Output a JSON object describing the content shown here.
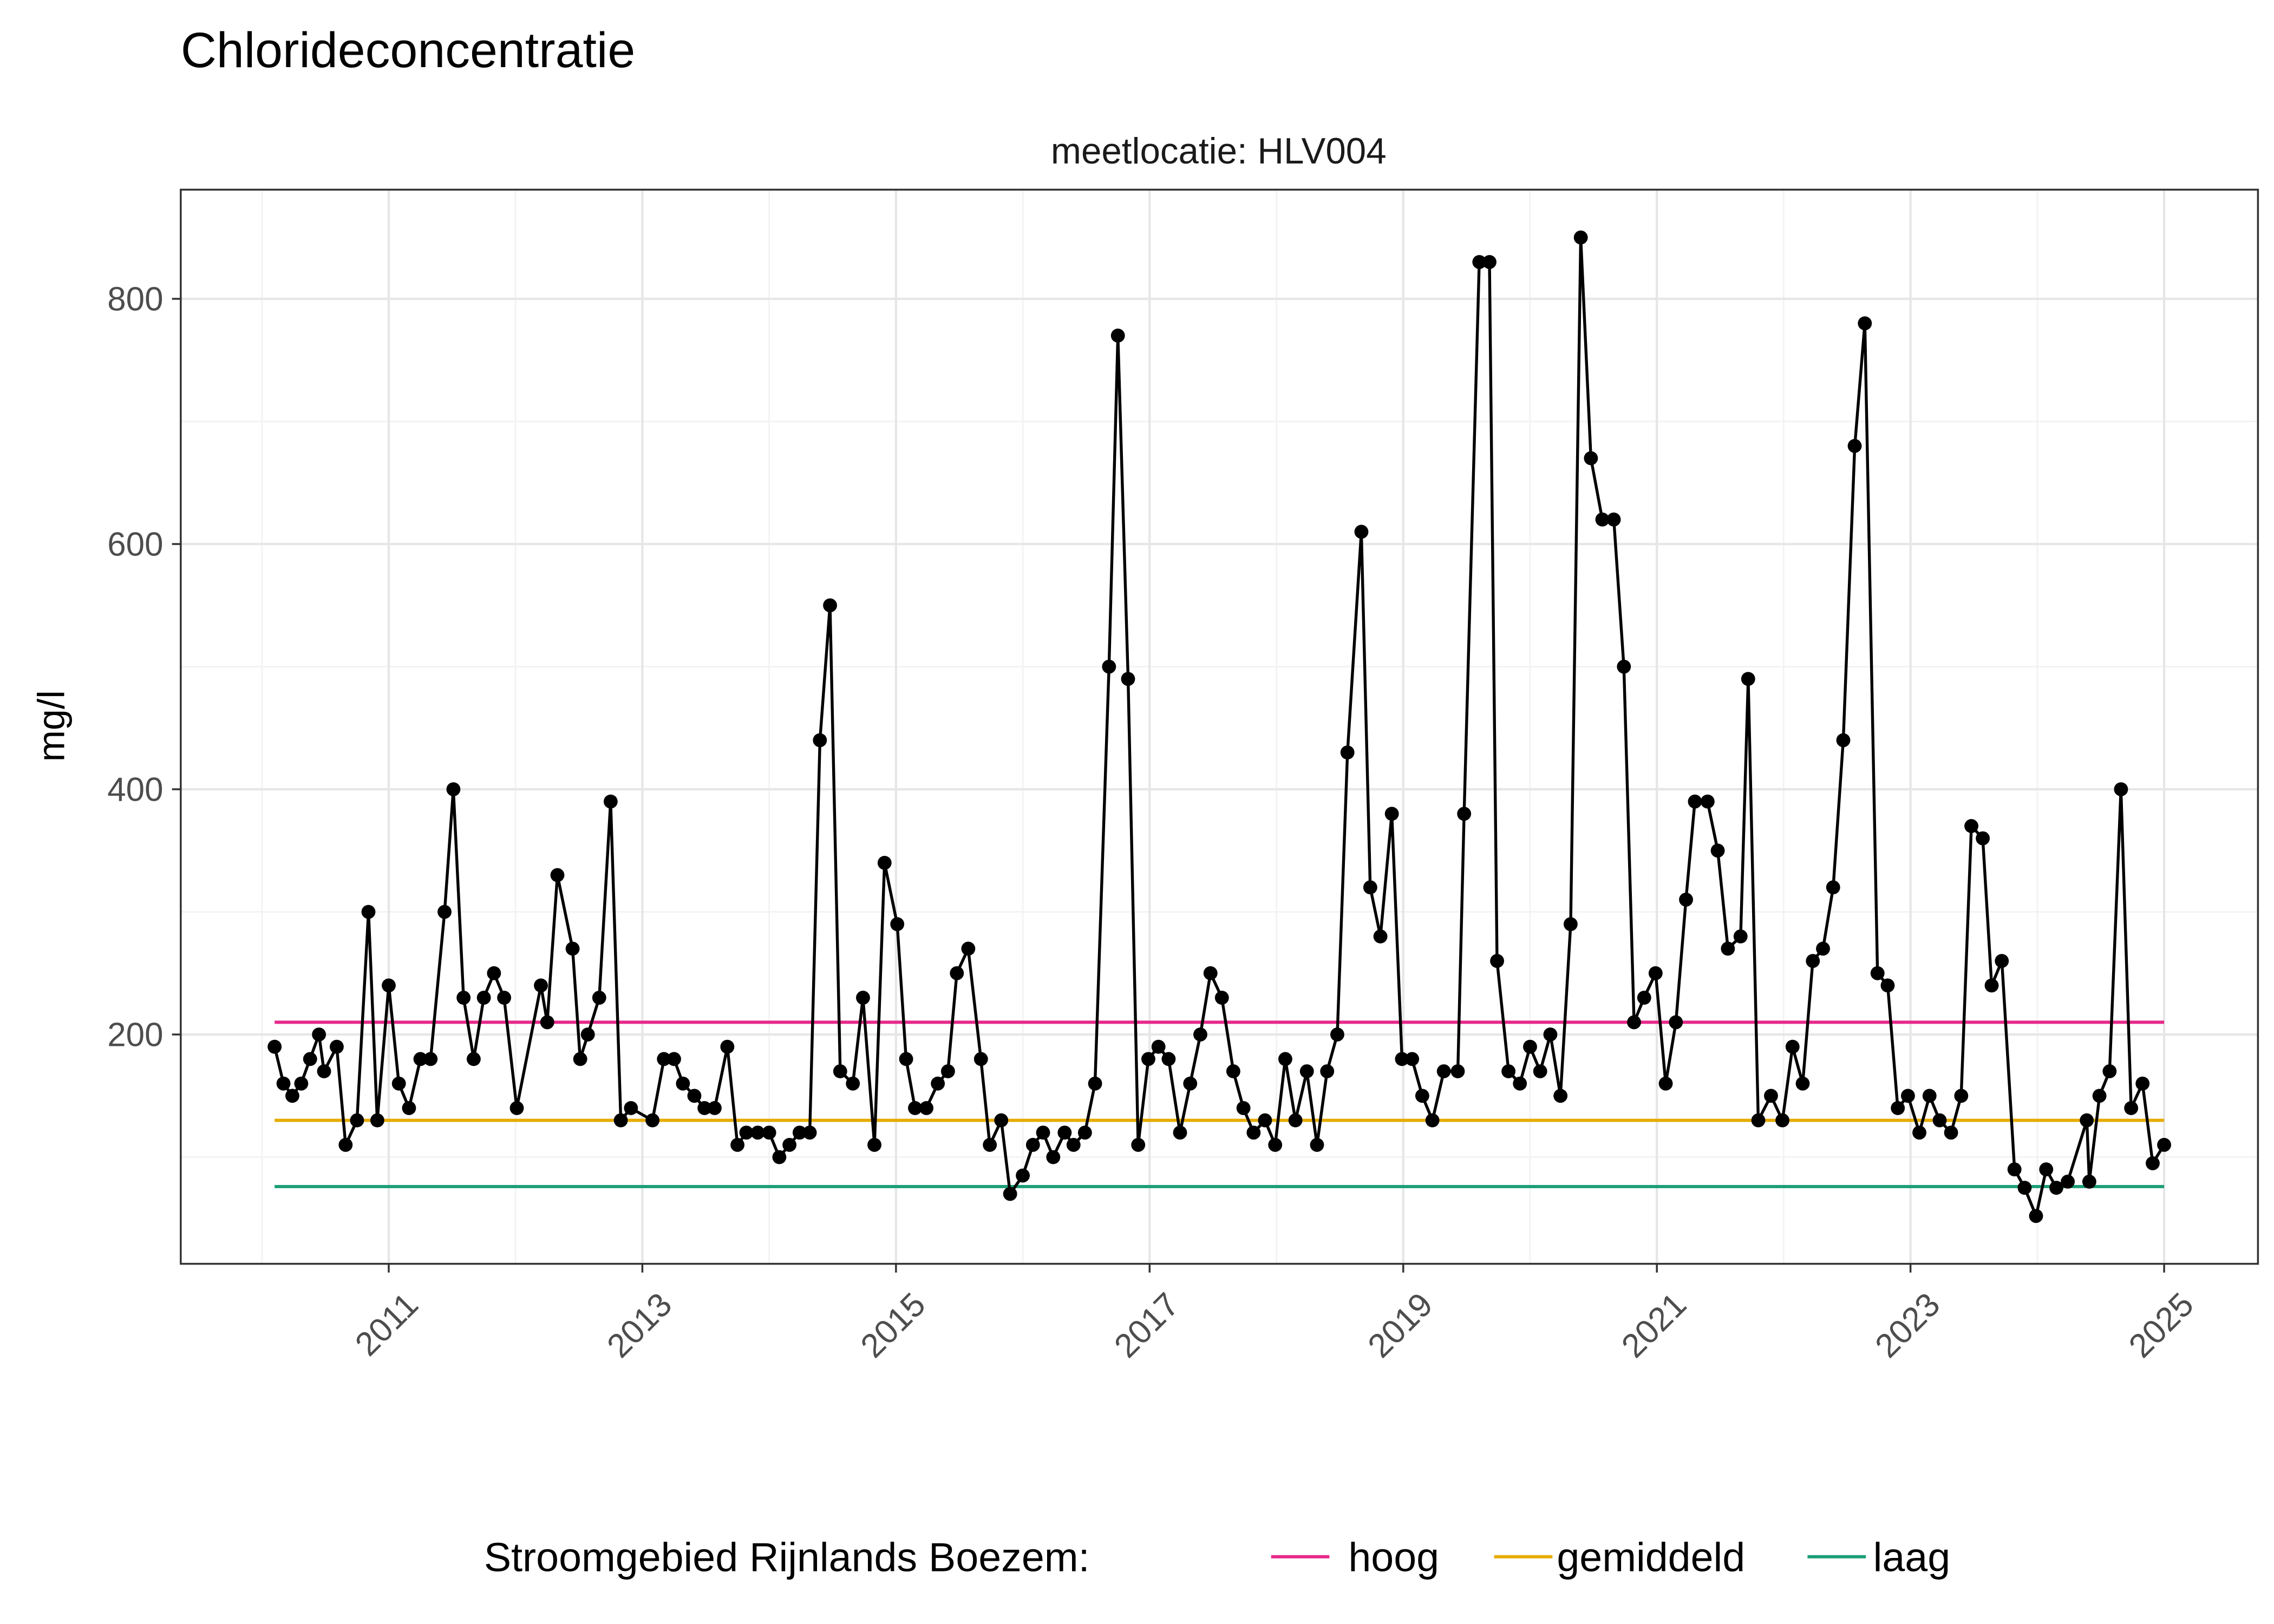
{
  "chart_data": {
    "type": "line",
    "title": "Chlorideconcentratie",
    "facet_label": "meetlocatie: HLV004",
    "xlabel": "",
    "ylabel": "mg/l",
    "xlim": [
      2009.36,
      2025.74
    ],
    "ylim": [
      13,
      889
    ],
    "x_ticks": [
      2011,
      2013,
      2015,
      2017,
      2019,
      2021,
      2023,
      2025
    ],
    "x_tick_labels": [
      "2011",
      "2013",
      "2015",
      "2017",
      "2019",
      "2021",
      "2023",
      "2025"
    ],
    "y_ticks": [
      200,
      400,
      600,
      800
    ],
    "y_tick_labels": [
      "200",
      "400",
      "600",
      "800"
    ],
    "grid": true,
    "legend_position": "bottom",
    "legend_title": "Stroomgebied Rijnlands Boezem:",
    "reference_lines": [
      {
        "name": "hoog",
        "value": 210,
        "color": "#E7298A"
      },
      {
        "name": "gemiddeld",
        "value": 130,
        "color": "#E6AB02"
      },
      {
        "name": "laag",
        "value": 76,
        "color": "#1B9E77"
      }
    ],
    "series": [
      {
        "color": "#000000",
        "x": [
          2010.1,
          2010.17,
          2010.24,
          2010.31,
          2010.38,
          2010.45,
          2010.49,
          2010.59,
          2010.66,
          2010.75,
          2010.84,
          2010.91,
          2011.0,
          2011.08,
          2011.16,
          2011.25,
          2011.33,
          2011.44,
          2011.51,
          2011.59,
          2011.67,
          2011.75,
          2011.83,
          2011.91,
          2012.01,
          2012.2,
          2012.25,
          2012.33,
          2012.45,
          2012.51,
          2012.57,
          2012.66,
          2012.75,
          2012.83,
          2012.91,
          2013.08,
          2013.17,
          2013.25,
          2013.32,
          2013.41,
          2013.49,
          2013.57,
          2013.67,
          2013.75,
          2013.82,
          2013.91,
          2014.0,
          2014.08,
          2014.16,
          2014.24,
          2014.32,
          2014.4,
          2014.48,
          2014.56,
          2014.66,
          2014.74,
          2014.83,
          2014.91,
          2015.01,
          2015.08,
          2015.15,
          2015.24,
          2015.33,
          2015.41,
          2015.48,
          2015.57,
          2015.67,
          2015.74,
          2015.83,
          2015.9,
          2016.0,
          2016.08,
          2016.16,
          2016.24,
          2016.33,
          2016.4,
          2016.49,
          2016.57,
          2016.68,
          2016.75,
          2016.83,
          2016.91,
          2016.99,
          2017.07,
          2017.15,
          2017.24,
          2017.32,
          2017.4,
          2017.48,
          2017.57,
          2017.66,
          2017.74,
          2017.82,
          2017.91,
          2017.99,
          2018.07,
          2018.15,
          2018.24,
          2018.32,
          2018.4,
          2018.48,
          2018.56,
          2018.67,
          2018.74,
          2018.82,
          2018.91,
          2018.99,
          2019.07,
          2019.15,
          2019.23,
          2019.32,
          2019.43,
          2019.48,
          2019.6,
          2019.68,
          2019.74,
          2019.83,
          2019.92,
          2020.0,
          2020.08,
          2020.16,
          2020.24,
          2020.32,
          2020.4,
          2020.48,
          2020.57,
          2020.66,
          2020.74,
          2020.82,
          2020.9,
          2020.99,
          2021.07,
          2021.15,
          2021.23,
          2021.3,
          2021.4,
          2021.48,
          2021.56,
          2021.66,
          2021.72,
          2021.8,
          2021.9,
          2021.99,
          2022.07,
          2022.15,
          2022.23,
          2022.31,
          2022.39,
          2022.47,
          2022.56,
          2022.64,
          2022.74,
          2022.82,
          2022.9,
          2022.98,
          2023.07,
          2023.15,
          2023.23,
          2023.32,
          2023.4,
          2023.48,
          2023.57,
          2023.64,
          2023.72,
          2023.82,
          2023.9,
          2023.99,
          2024.07,
          2024.15,
          2024.24,
          2024.39,
          2024.41,
          2024.49,
          2024.57,
          2024.66,
          2024.74,
          2024.83,
          2024.91,
          2025.0
        ],
        "y": [
          190,
          160,
          150,
          160,
          180,
          200,
          170,
          190,
          110,
          130,
          300,
          130,
          240,
          160,
          140,
          180,
          180,
          300,
          400,
          230,
          180,
          230,
          250,
          230,
          140,
          240,
          210,
          330,
          270,
          180,
          200,
          230,
          390,
          130,
          140,
          130,
          180,
          180,
          160,
          150,
          140,
          140,
          190,
          110,
          120,
          120,
          120,
          100,
          110,
          120,
          120,
          440,
          550,
          170,
          160,
          230,
          110,
          340,
          290,
          180,
          140,
          140,
          160,
          170,
          250,
          270,
          180,
          110,
          130,
          70,
          85,
          110,
          120,
          100,
          120,
          110,
          120,
          160,
          500,
          770,
          490,
          110,
          180,
          190,
          180,
          120,
          160,
          200,
          250,
          230,
          170,
          140,
          120,
          130,
          110,
          180,
          130,
          170,
          110,
          170,
          200,
          430,
          610,
          320,
          280,
          380,
          180,
          180,
          150,
          130,
          170,
          170,
          380,
          830,
          830,
          260,
          170,
          160,
          190,
          170,
          200,
          150,
          290,
          850,
          670,
          620,
          620,
          500,
          210,
          230,
          250,
          160,
          210,
          310,
          390,
          390,
          350,
          270,
          280,
          490,
          130,
          150,
          130,
          190,
          160,
          260,
          270,
          320,
          440,
          680,
          780,
          250,
          240,
          140,
          150,
          120,
          150,
          130,
          120,
          150,
          370,
          360,
          240,
          260,
          90,
          75,
          52,
          90,
          75,
          80,
          130,
          80,
          150,
          170,
          400,
          140,
          160,
          95,
          110
        ]
      }
    ]
  }
}
